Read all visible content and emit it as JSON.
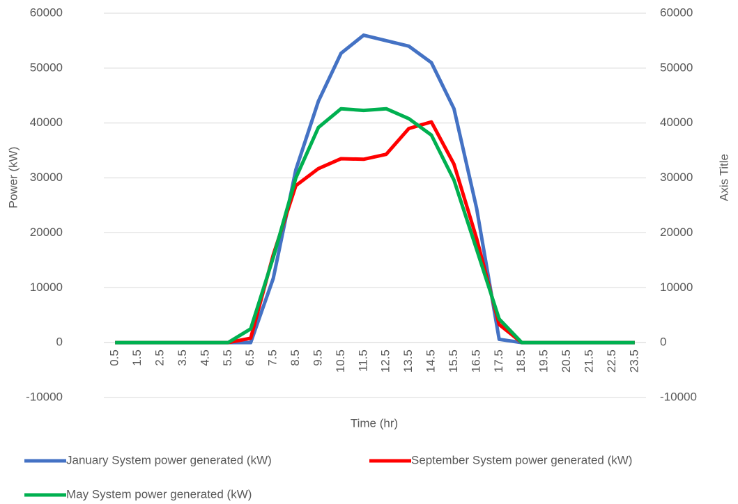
{
  "chart_data": {
    "type": "line",
    "xlabel": "Time (hr)",
    "ylabel": "Power (kW)",
    "y2label": "Axis Title",
    "categories": [
      "0.5",
      "1.5",
      "2.5",
      "3.5",
      "4.5",
      "5.5",
      "6.5",
      "7.5",
      "8.5",
      "9.5",
      "10.5",
      "11.5",
      "12.5",
      "13.5",
      "14.5",
      "15.5",
      "16.5",
      "17.5",
      "18.5",
      "19.5",
      "20.5",
      "21.5",
      "22.5",
      "23.5"
    ],
    "series": [
      {
        "name": "January System power generated (kW)",
        "color": "#4472c4",
        "values": [
          0,
          0,
          0,
          0,
          0,
          0,
          0,
          11700,
          31500,
          44000,
          52700,
          56000,
          55000,
          54000,
          51000,
          42600,
          24500,
          600,
          0,
          0,
          0,
          0,
          0,
          0
        ]
      },
      {
        "name": "September System power generated (kW)",
        "color": "#ff0000",
        "values": [
          0,
          0,
          0,
          0,
          0,
          0,
          800,
          16000,
          28600,
          31700,
          33500,
          33400,
          34300,
          39000,
          40200,
          32500,
          19000,
          3300,
          0,
          0,
          0,
          0,
          0,
          0
        ]
      },
      {
        "name": "May System power generated (kW)",
        "color": "#00b050",
        "values": [
          0,
          0,
          0,
          0,
          0,
          0,
          2500,
          15500,
          30000,
          39200,
          42600,
          42300,
          42600,
          40800,
          37800,
          29600,
          17000,
          4300,
          0,
          0,
          0,
          0,
          0,
          0
        ]
      }
    ],
    "ylim": [
      -10000,
      60000
    ],
    "yticks": [
      -10000,
      0,
      10000,
      20000,
      30000,
      40000,
      50000,
      60000
    ],
    "y2lim": [
      -10000,
      60000
    ],
    "y2ticks": [
      -10000,
      0,
      10000,
      20000,
      30000,
      40000,
      50000,
      60000
    ],
    "grid": true,
    "legend": "bottom"
  }
}
